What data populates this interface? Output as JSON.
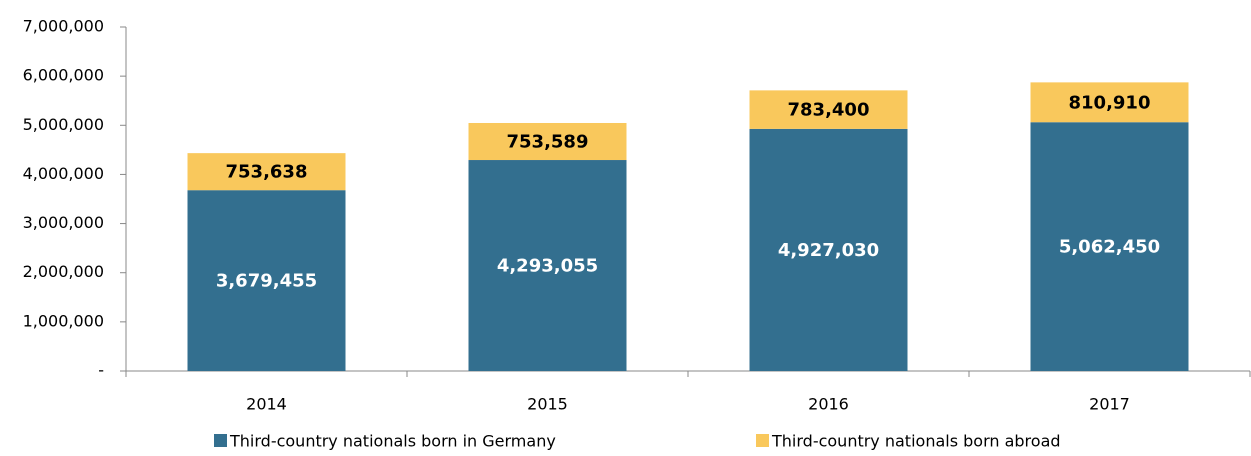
{
  "chart_data": {
    "type": "stacked_bar",
    "categories": [
      "2014",
      "2015",
      "2016",
      "2017"
    ],
    "series": [
      {
        "name": "Third-country nationals born in Germany",
        "color": "#336f8f",
        "values": [
          3679455,
          4293055,
          4927030,
          5062450
        ],
        "value_labels": [
          "3,679,455",
          "4,293,055",
          "4,927,030",
          "5,062,450"
        ]
      },
      {
        "name": "Third-country nationals born abroad",
        "color": "#f9c85c",
        "values": [
          753638,
          753589,
          783400,
          810910
        ],
        "value_labels": [
          "753,638",
          "753,589",
          "783,400",
          "810,910"
        ]
      }
    ],
    "ylim": [
      0,
      7000000
    ],
    "yticks": [
      {
        "value": 0,
        "label": "-"
      },
      {
        "value": 1000000,
        "label": "1,000,000"
      },
      {
        "value": 2000000,
        "label": "2,000,000"
      },
      {
        "value": 3000000,
        "label": "3,000,000"
      },
      {
        "value": 4000000,
        "label": "4,000,000"
      },
      {
        "value": 5000000,
        "label": "5,000,000"
      },
      {
        "value": 6000000,
        "label": "6,000,000"
      },
      {
        "value": 7000000,
        "label": "7,000,000"
      }
    ],
    "grid": false,
    "legend": "bottom"
  }
}
